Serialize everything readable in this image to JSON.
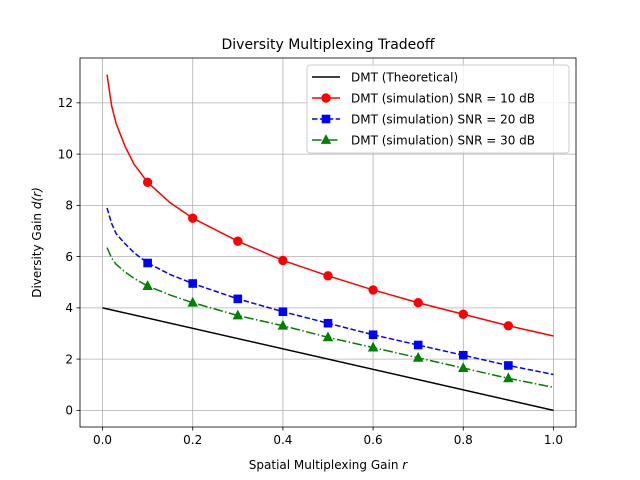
{
  "chart_data": {
    "type": "line",
    "title": "Diversity Multiplexing Tradeoff",
    "xlabel": "Spatial Multiplexing Gain",
    "xlabel_var": "r",
    "ylabel": "Diversity Gain",
    "ylabel_var": "d(r)",
    "xlim": [
      -0.05,
      1.05
    ],
    "ylim": [
      -0.65,
      13.75
    ],
    "xticks": [
      0.0,
      0.2,
      0.4,
      0.6,
      0.8,
      1.0
    ],
    "xtick_labels": [
      "0.0",
      "0.2",
      "0.4",
      "0.6",
      "0.8",
      "1.0"
    ],
    "yticks": [
      0,
      2,
      4,
      6,
      8,
      10,
      12
    ],
    "ytick_labels": [
      "0",
      "2",
      "4",
      "6",
      "8",
      "10",
      "12"
    ],
    "grid": true,
    "legend_position": "top-right",
    "series": [
      {
        "name": "DMT (Theoretical)",
        "color": "#000000",
        "dash": "solid",
        "marker": "none",
        "x": [
          0.0,
          1.0
        ],
        "y": [
          4.0,
          0.0
        ]
      },
      {
        "name": "DMT (simulation) SNR = 10 dB",
        "color": "#ff0000",
        "dash": "solid",
        "marker": "circle",
        "x": [
          0.01,
          0.02,
          0.03,
          0.05,
          0.07,
          0.1,
          0.15,
          0.2,
          0.3,
          0.4,
          0.5,
          0.6,
          0.7,
          0.8,
          0.9,
          1.0
        ],
        "y": [
          13.1,
          11.9,
          11.2,
          10.3,
          9.6,
          8.9,
          8.1,
          7.5,
          6.6,
          5.85,
          5.25,
          4.7,
          4.2,
          3.75,
          3.3,
          2.9
        ],
        "marker_x": [
          0.1,
          0.2,
          0.3,
          0.4,
          0.5,
          0.6,
          0.7,
          0.8,
          0.9
        ],
        "marker_y": [
          8.9,
          7.5,
          6.6,
          5.85,
          5.25,
          4.7,
          4.2,
          3.75,
          3.3
        ]
      },
      {
        "name": "DMT (simulation) SNR = 20 dB",
        "color": "#0000ff",
        "dash": "dashed",
        "marker": "square",
        "x": [
          0.01,
          0.02,
          0.03,
          0.05,
          0.07,
          0.1,
          0.15,
          0.2,
          0.3,
          0.4,
          0.5,
          0.6,
          0.7,
          0.8,
          0.9,
          1.0
        ],
        "y": [
          7.9,
          7.3,
          6.9,
          6.5,
          6.15,
          5.75,
          5.3,
          4.95,
          4.35,
          3.85,
          3.4,
          2.95,
          2.55,
          2.15,
          1.75,
          1.4
        ],
        "marker_x": [
          0.1,
          0.2,
          0.3,
          0.4,
          0.5,
          0.6,
          0.7,
          0.8,
          0.9
        ],
        "marker_y": [
          5.75,
          4.95,
          4.35,
          3.85,
          3.4,
          2.95,
          2.55,
          2.15,
          1.75
        ]
      },
      {
        "name": "DMT (simulation) SNR = 30 dB",
        "color": "#008000",
        "dash": "dashdot",
        "marker": "triangle",
        "x": [
          0.01,
          0.02,
          0.03,
          0.05,
          0.07,
          0.1,
          0.15,
          0.2,
          0.3,
          0.4,
          0.5,
          0.6,
          0.7,
          0.8,
          0.9,
          1.0
        ],
        "y": [
          6.35,
          5.95,
          5.7,
          5.4,
          5.15,
          4.85,
          4.5,
          4.2,
          3.7,
          3.3,
          2.85,
          2.45,
          2.05,
          1.65,
          1.25,
          0.9
        ],
        "marker_x": [
          0.1,
          0.2,
          0.3,
          0.4,
          0.5,
          0.6,
          0.7,
          0.8,
          0.9
        ],
        "marker_y": [
          4.85,
          4.2,
          3.7,
          3.3,
          2.85,
          2.45,
          2.05,
          1.65,
          1.25
        ]
      }
    ]
  }
}
